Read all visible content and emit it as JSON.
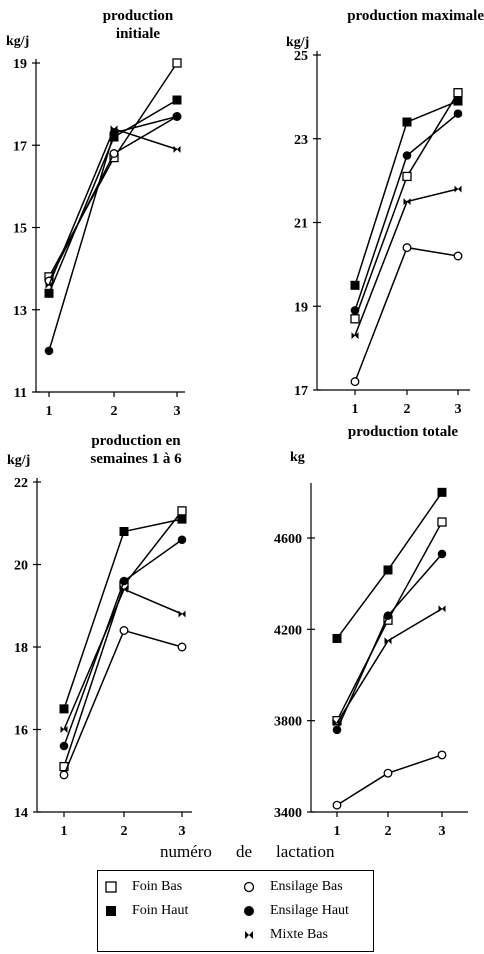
{
  "chart_data": [
    {
      "type": "line",
      "title": "production\ninitiale",
      "ylabel": "kg/j",
      "x": [
        1,
        2,
        3
      ],
      "ylim": [
        11,
        19
      ],
      "yticks": [
        11,
        13,
        15,
        17,
        19
      ],
      "series": [
        {
          "name": "Foin Bas",
          "marker": "open-square",
          "values": [
            13.8,
            16.7,
            19.0
          ]
        },
        {
          "name": "Foin Haut",
          "marker": "filled-square",
          "values": [
            13.4,
            17.2,
            18.1
          ]
        },
        {
          "name": "Ensilage Bas",
          "marker": "open-circle",
          "values": [
            13.7,
            16.8,
            17.7
          ]
        },
        {
          "name": "Ensilage Haut",
          "marker": "filled-circle",
          "values": [
            12.0,
            17.3,
            17.7
          ]
        },
        {
          "name": "Mixte Bas",
          "marker": "bowtie",
          "values": [
            13.6,
            17.4,
            16.9
          ]
        }
      ]
    },
    {
      "type": "line",
      "title": "production maximale",
      "ylabel": "kg/j",
      "x": [
        1,
        2,
        3
      ],
      "ylim": [
        17,
        25
      ],
      "yticks": [
        17,
        19,
        21,
        23,
        25
      ],
      "series": [
        {
          "name": "Foin Bas",
          "marker": "open-square",
          "values": [
            18.7,
            22.1,
            24.1
          ]
        },
        {
          "name": "Foin Haut",
          "marker": "filled-square",
          "values": [
            19.5,
            23.4,
            23.9
          ]
        },
        {
          "name": "Ensilage Bas",
          "marker": "open-circle",
          "values": [
            17.2,
            20.4,
            20.2
          ]
        },
        {
          "name": "Ensilage Haut",
          "marker": "filled-circle",
          "values": [
            18.9,
            22.6,
            23.6
          ]
        },
        {
          "name": "Mixte Bas",
          "marker": "bowtie",
          "values": [
            18.3,
            21.5,
            21.8
          ]
        }
      ]
    },
    {
      "type": "line",
      "title": "production en\nsemaines 1 à 6",
      "ylabel": "kg/j",
      "x": [
        1,
        2,
        3
      ],
      "ylim": [
        14,
        22
      ],
      "yticks": [
        14,
        16,
        18,
        20,
        22
      ],
      "series": [
        {
          "name": "Foin Bas",
          "marker": "open-square",
          "values": [
            15.1,
            19.5,
            21.3
          ]
        },
        {
          "name": "Foin Haut",
          "marker": "filled-square",
          "values": [
            16.5,
            20.8,
            21.1
          ]
        },
        {
          "name": "Ensilage Bas",
          "marker": "open-circle",
          "values": [
            14.9,
            18.4,
            18.0
          ]
        },
        {
          "name": "Ensilage Haut",
          "marker": "filled-circle",
          "values": [
            15.6,
            19.6,
            20.6
          ]
        },
        {
          "name": "Mixte Bas",
          "marker": "bowtie",
          "values": [
            16.0,
            19.4,
            18.8
          ]
        }
      ]
    },
    {
      "type": "line",
      "title": "production totale",
      "ylabel": "kg",
      "x": [
        1,
        2,
        3
      ],
      "ylim": [
        3400,
        4850
      ],
      "yticks": [
        3400,
        3800,
        4200,
        4600
      ],
      "series": [
        {
          "name": "Foin Bas",
          "marker": "open-square",
          "values": [
            3800,
            4240,
            4670
          ]
        },
        {
          "name": "Foin Haut",
          "marker": "filled-square",
          "values": [
            4160,
            4460,
            4800
          ]
        },
        {
          "name": "Ensilage Bas",
          "marker": "open-circle",
          "values": [
            3430,
            3570,
            3650
          ]
        },
        {
          "name": "Ensilage Haut",
          "marker": "filled-circle",
          "values": [
            3760,
            4260,
            4530
          ]
        },
        {
          "name": "Mixte Bas",
          "marker": "bowtie",
          "values": [
            3790,
            4150,
            4290
          ]
        }
      ]
    }
  ],
  "xaxis_label": [
    "numéro",
    "de",
    "lactation"
  ],
  "legend": [
    {
      "label": "Foin Bas",
      "marker": "open-square"
    },
    {
      "label": "Foin Haut",
      "marker": "filled-square"
    },
    {
      "label": "Ensilage Bas",
      "marker": "open-circle"
    },
    {
      "label": "Ensilage Haut",
      "marker": "filled-circle"
    },
    {
      "label": "Mixte Bas",
      "marker": "bowtie"
    }
  ],
  "colors": {
    "ink": "#000000",
    "background": "#ffffff"
  }
}
